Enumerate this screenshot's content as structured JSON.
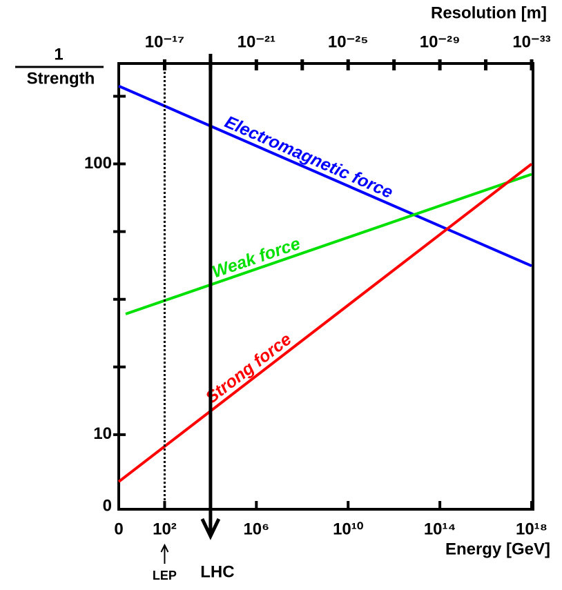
{
  "chart_data": {
    "type": "line",
    "y_label_top": "1",
    "y_label_bottom": "Strength",
    "x_label": "Energy [GeV]",
    "x2_label": "Resolution [m]",
    "x_scale": "log",
    "y_scale": "log",
    "xlim": [
      1,
      1e+18
    ],
    "xticks": [
      {
        "value": 1,
        "label": "0"
      },
      {
        "value": 100,
        "label": "10²"
      },
      {
        "value": 1000000,
        "label": "10⁶"
      },
      {
        "value": 10000000000,
        "label": "10¹⁰"
      },
      {
        "value": 100000000000000,
        "label": "10¹⁴"
      },
      {
        "value": 1e+18,
        "label": "10¹⁸"
      }
    ],
    "x2lim": [
      1e-15,
      1e-33
    ],
    "x2ticks": [
      {
        "value": 1e-17,
        "label": "10⁻¹⁷"
      },
      {
        "value": 1e-21,
        "label": "10⁻²¹"
      },
      {
        "value": 1e-25,
        "label": "10⁻²⁵"
      },
      {
        "value": 1e-29,
        "label": "10⁻²⁹"
      },
      {
        "value": 1e-33,
        "label": "10⁻³³"
      }
    ],
    "ylim": [
      5.3,
      235
    ],
    "yticks": [
      10,
      100
    ],
    "y_bottom_label": "0",
    "series": [
      {
        "name": "Electromagnetic force",
        "color": "#0000ff",
        "x": [
          1,
          1e+18
        ],
        "values": [
          194,
          42
        ]
      },
      {
        "name": "Weak force",
        "color": "#00e000",
        "x": [
          2,
          1e+18
        ],
        "values": [
          27.9,
          91.6
        ]
      },
      {
        "name": "Strong force",
        "color": "#ff0000",
        "x": [
          1,
          1e+18
        ],
        "values": [
          6.7,
          100
        ]
      }
    ],
    "markers": [
      {
        "label": "LEP",
        "x": 100
      },
      {
        "label": "LHC",
        "x": 10000
      }
    ]
  }
}
